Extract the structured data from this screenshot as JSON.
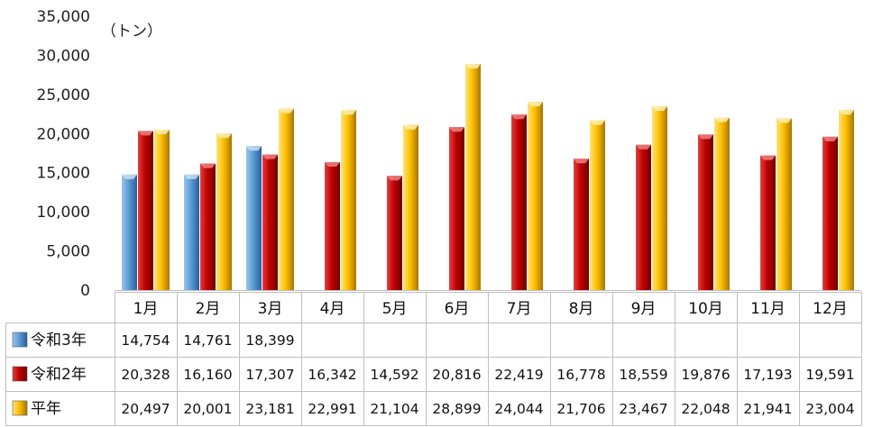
{
  "chart_data": {
    "type": "bar",
    "unit_label": "（トン）",
    "categories": [
      "1月",
      "2月",
      "3月",
      "4月",
      "5月",
      "6月",
      "7月",
      "8月",
      "9月",
      "10月",
      "11月",
      "12月"
    ],
    "ylim": [
      0,
      35000
    ],
    "yticks": [
      "0",
      "5,000",
      "10,000",
      "15,000",
      "20,000",
      "25,000",
      "30,000",
      "35,000"
    ],
    "ytick_values": [
      0,
      5000,
      10000,
      15000,
      20000,
      25000,
      30000,
      35000
    ],
    "legend_placement": "table-left",
    "series": [
      {
        "name": "令和3年",
        "color": "#5b9bd5",
        "values": [
          14754,
          14761,
          18399,
          null,
          null,
          null,
          null,
          null,
          null,
          null,
          null,
          null
        ],
        "labels": [
          "14,754",
          "14,761",
          "18,399",
          "",
          "",
          "",
          "",
          "",
          "",
          "",
          "",
          ""
        ]
      },
      {
        "name": "令和2年",
        "color": "#c00000",
        "values": [
          20328,
          16160,
          17307,
          16342,
          14592,
          20816,
          22419,
          16778,
          18559,
          19876,
          17193,
          19591
        ],
        "labels": [
          "20,328",
          "16,160",
          "17,307",
          "16,342",
          "14,592",
          "20,816",
          "22,419",
          "16,778",
          "18,559",
          "19,876",
          "17,193",
          "19,591"
        ]
      },
      {
        "name": "平年",
        "color": "#ffc000",
        "values": [
          20497,
          20001,
          23181,
          22991,
          21104,
          28899,
          24044,
          21706,
          23467,
          22048,
          21941,
          23004
        ],
        "labels": [
          "20,497",
          "20,001",
          "23,181",
          "22,991",
          "21,104",
          "28,899",
          "24,044",
          "21,706",
          "23,467",
          "22,048",
          "21,941",
          "23,004"
        ]
      }
    ]
  }
}
